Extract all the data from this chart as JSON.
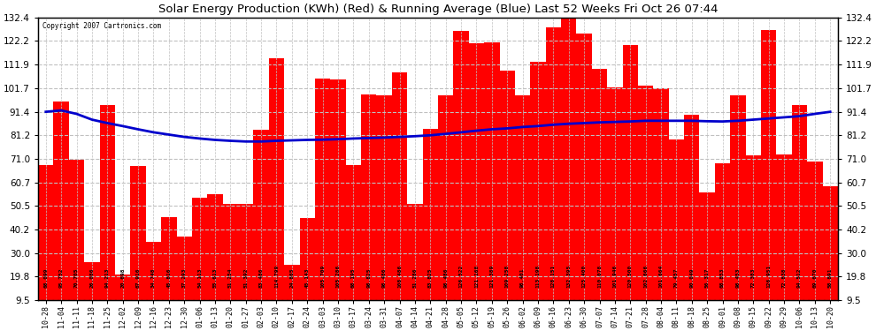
{
  "title": "Solar Energy Production (KWh) (Red) & Running Average (Blue) Last 52 Weeks Fri Oct 26 07:44",
  "copyright": "Copyright 2007 Cartronics.com",
  "bar_color": "#ff0000",
  "line_color": "#0000cc",
  "background_color": "#ffffff",
  "grid_color": "#c0c0c0",
  "ylim": [
    9.5,
    132.4
  ],
  "yticks": [
    9.5,
    19.8,
    30.0,
    40.2,
    50.5,
    60.7,
    71.0,
    81.2,
    91.4,
    101.7,
    111.9,
    122.2,
    132.4
  ],
  "categories": [
    "10-28",
    "11-04",
    "11-11",
    "11-18",
    "11-25",
    "12-02",
    "12-09",
    "12-16",
    "12-23",
    "12-30",
    "01-06",
    "01-13",
    "01-20",
    "01-27",
    "02-03",
    "02-10",
    "02-17",
    "02-24",
    "03-03",
    "03-10",
    "03-17",
    "03-24",
    "03-31",
    "04-07",
    "04-14",
    "04-21",
    "04-28",
    "05-05",
    "05-12",
    "05-19",
    "05-26",
    "06-02",
    "06-09",
    "06-16",
    "06-23",
    "06-30",
    "07-07",
    "07-14",
    "07-21",
    "07-28",
    "08-04",
    "08-11",
    "08-18",
    "08-25",
    "09-01",
    "09-08",
    "09-15",
    "09-22",
    "09-29",
    "10-06",
    "10-13",
    "10-20"
  ],
  "bar_values": [
    68.099,
    95.752,
    70.705,
    26.086,
    94.213,
    20.698,
    67.916,
    34.748,
    45.816,
    37.293,
    54.113,
    55.613,
    51.254,
    51.392,
    83.486,
    114.799,
    24.865,
    45.143,
    105.709,
    105.286,
    68.195,
    98.825,
    98.486,
    108.486,
    51.286,
    83.825,
    98.486,
    126.522,
    121.168,
    121.389,
    109.258,
    98.401,
    113.198,
    128.151,
    132.395,
    125.4,
    110.078,
    101.946,
    120.5,
    102.666,
    101.664,
    79.457,
    90.049,
    56.317,
    68.853,
    98.453,
    72.383,
    126.951,
    72.838,
    94.512,
    69.67,
    58.891
  ],
  "bar_labels": [
    "68.099",
    "95.752",
    "70.705",
    "26.086",
    "94.213",
    "20.698",
    "67.916",
    "34.748",
    "45.816",
    "37.293",
    "54.113",
    "55.613",
    "51.254",
    "51.392",
    "83.486",
    "114.799",
    "24.865",
    "45.143",
    "105.709",
    "105.286",
    "68.195",
    "98.825",
    "98.486",
    "108.486",
    "51.286",
    "83.825",
    "98.486",
    "126.522",
    "121.168",
    "121.389",
    "109.258",
    "98.401",
    "113.198",
    "128.151",
    "132.395",
    "125.400",
    "110.078",
    "101.946",
    "120.500",
    "102.666",
    "101.664",
    "79.457",
    "90.049",
    "56.317",
    "68.853",
    "98.453",
    "72.383",
    "126.951",
    "72.838",
    "94.512",
    "69.670",
    "58.891"
  ],
  "avg_values": [
    91.4,
    92.0,
    90.5,
    88.0,
    86.5,
    85.2,
    83.8,
    82.5,
    81.5,
    80.5,
    79.8,
    79.2,
    78.8,
    78.5,
    78.5,
    78.8,
    79.0,
    79.2,
    79.3,
    79.5,
    79.8,
    80.0,
    80.2,
    80.5,
    80.8,
    81.2,
    81.8,
    82.5,
    83.2,
    83.8,
    84.2,
    84.8,
    85.2,
    85.8,
    86.2,
    86.5,
    86.8,
    87.0,
    87.2,
    87.5,
    87.5,
    87.5,
    87.5,
    87.3,
    87.2,
    87.5,
    88.0,
    88.5,
    89.0,
    89.5,
    90.5,
    91.4
  ]
}
